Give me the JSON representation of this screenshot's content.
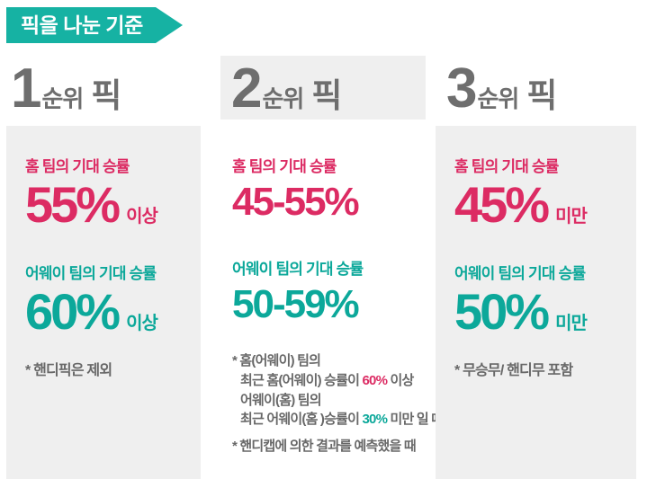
{
  "banner": {
    "title": "픽을 나눈 기준"
  },
  "colors": {
    "banner_teal": "#16b2a3",
    "pink": "#dc2b63",
    "teal": "#0ca89a",
    "heading_gray": "#6e6e6e",
    "note_gray": "#686868",
    "box_gray": "#efefef"
  },
  "columns": [
    {
      "rank_number": "1",
      "rank_suffix": "순위",
      "rank_label": "픽",
      "home": {
        "label": "홈 팀의 기대 승률",
        "value": "55%",
        "qualifier": "이상"
      },
      "away": {
        "label": "어웨이 팀의 기대 승률",
        "value": "60%",
        "qualifier": "이상"
      },
      "note": "* 핸디픽은 제외"
    },
    {
      "rank_number": "2",
      "rank_suffix": "순위",
      "rank_label": "픽",
      "home": {
        "label": "홈 팀의 기대 승률",
        "value": "45-55%"
      },
      "away": {
        "label": "어웨이 팀의 기대 승률",
        "value": "50-59%"
      },
      "conditions": {
        "line1": "* 홈(어웨이) 팀의",
        "line2_pre": "최근 홈(어웨이) 승률이 ",
        "line2_value": "60%",
        "line2_post": " 이상",
        "line3": "어웨이(홈) 팀의",
        "line4_pre": "최근 어웨이(홈 )승률이 ",
        "line4_value": "30%",
        "line4_post": " 미만 일 때.",
        "note2": "* 핸디캡에 의한 결과를 예측했을 때"
      }
    },
    {
      "rank_number": "3",
      "rank_suffix": "순위",
      "rank_label": "픽",
      "home": {
        "label": "홈 팀의 기대 승률",
        "value": "45%",
        "qualifier": "미만"
      },
      "away": {
        "label": "어웨이 팀의 기대 승률",
        "value": "50%",
        "qualifier": "미만"
      },
      "note": "* 무승무/ 핸디무 포함"
    }
  ]
}
